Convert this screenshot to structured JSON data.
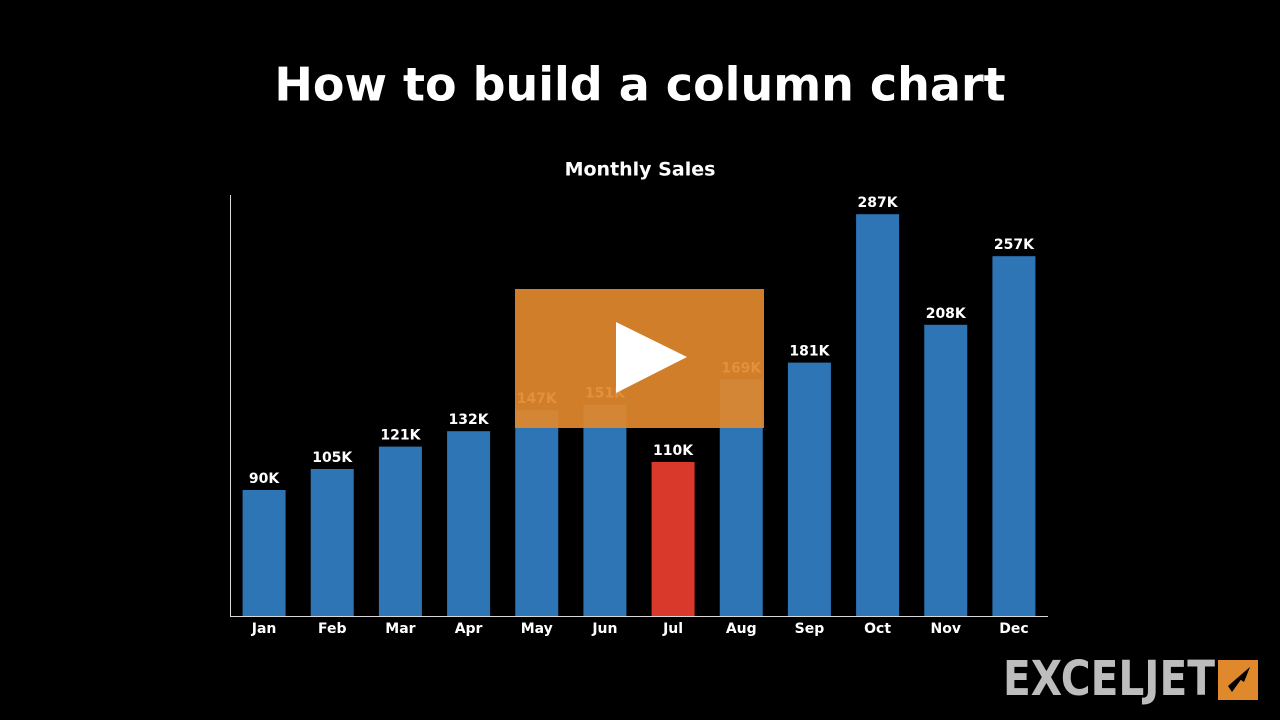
{
  "page_title": "How to build a column chart",
  "logo": "EXCELJET",
  "chart_data": {
    "type": "bar",
    "title": "Monthly Sales",
    "categories": [
      "Jan",
      "Feb",
      "Mar",
      "Apr",
      "May",
      "Jun",
      "Jul",
      "Aug",
      "Sep",
      "Oct",
      "Nov",
      "Dec"
    ],
    "values": [
      90000,
      105000,
      121000,
      132000,
      147000,
      151000,
      110000,
      169000,
      181000,
      287000,
      208000,
      257000
    ],
    "value_labels": [
      "90K",
      "105K",
      "121K",
      "132K",
      "147K",
      "151K",
      "110K",
      "169K",
      "181K",
      "287K",
      "208K",
      "257K"
    ],
    "colors": [
      "#2e75b6",
      "#2e75b6",
      "#2e75b6",
      "#2e75b6",
      "#2e75b6",
      "#2e75b6",
      "#d9392a",
      "#2e75b6",
      "#2e75b6",
      "#2e75b6",
      "#2e75b6",
      "#2e75b6"
    ],
    "ylim": [
      0,
      300000
    ]
  }
}
